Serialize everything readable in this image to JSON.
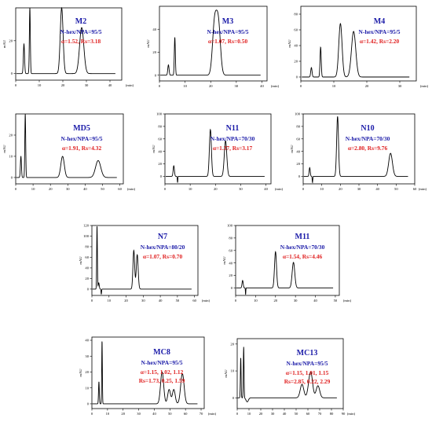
{
  "chart_data": [
    {
      "type": "line",
      "name": "M2",
      "mobile_phase": "N-hex/NPA=95/5",
      "metrics": "α=1.52, Rs=3.18",
      "ylabel": "mAU",
      "xlabel": "(min)",
      "xlim": [
        0,
        45
      ],
      "ylim": [
        -4,
        40
      ],
      "xticks": [
        0,
        10,
        20,
        30,
        40
      ],
      "yticks": [
        0,
        20
      ],
      "peaks": [
        [
          3.5,
          18,
          0.25
        ],
        [
          6.0,
          40,
          0.2
        ],
        [
          19.5,
          40,
          0.6
        ],
        [
          28.0,
          28,
          0.9
        ]
      ]
    },
    {
      "type": "line",
      "name": "M3",
      "mobile_phase": "N-hex/NPA=95/5",
      "metrics": "α=1.07, Rs=0.50",
      "ylabel": "mAU",
      "xlabel": "(min)",
      "xlim": [
        0,
        42
      ],
      "ylim": [
        -5,
        60
      ],
      "xticks": [
        0,
        10,
        20,
        30,
        40
      ],
      "yticks": [
        0,
        20,
        40
      ],
      "peaks": [
        [
          3.5,
          9,
          0.25
        ],
        [
          6.0,
          33,
          0.2
        ],
        [
          21.5,
          44,
          0.8
        ],
        [
          23.0,
          44,
          0.8
        ]
      ]
    },
    {
      "type": "line",
      "name": "M4",
      "mobile_phase": "N-hex/NPA=95/5",
      "metrics": "α=1.42, Rs=2.20",
      "ylabel": "mAU",
      "xlabel": "(min)",
      "xlim": [
        0,
        35
      ],
      "ylim": [
        -5,
        90
      ],
      "xticks": [
        0,
        10,
        20,
        30
      ],
      "yticks": [
        0,
        20,
        40,
        60,
        80
      ],
      "peaks": [
        [
          3.2,
          12,
          0.2
        ],
        [
          6.0,
          38,
          0.18
        ],
        [
          12.0,
          68,
          0.5
        ],
        [
          16.0,
          58,
          0.65
        ]
      ]
    },
    {
      "type": "line",
      "name": "MD5",
      "mobile_phase": "N-hex/NPA=95/5",
      "metrics": "α=1.91, Rs=4.32",
      "ylabel": "mAU",
      "xlabel": "(min)",
      "xlim": [
        0,
        62
      ],
      "ylim": [
        -3,
        30
      ],
      "xticks": [
        0,
        10,
        20,
        30,
        40,
        50,
        60
      ],
      "yticks": [
        0,
        10,
        20
      ],
      "peaks": [
        [
          3.0,
          10,
          0.3
        ],
        [
          5.5,
          30,
          0.25
        ],
        [
          27.0,
          10,
          1.0
        ],
        [
          47.5,
          8,
          1.5
        ]
      ]
    },
    {
      "type": "line",
      "name": "N11",
      "mobile_phase": "N-hex/NPA=70/30",
      "metrics": "α=1.37, Rs=3.17",
      "ylabel": "mAU",
      "xlabel": "(min)",
      "xlim": [
        0,
        42
      ],
      "ylim": [
        -12,
        100
      ],
      "xticks": [
        0,
        10,
        20,
        30,
        40
      ],
      "yticks": [
        0,
        20,
        40,
        60,
        80,
        100
      ],
      "peaks": [
        [
          3.5,
          17,
          0.25
        ],
        [
          18.0,
          75,
          0.4
        ],
        [
          24.0,
          57,
          0.5
        ]
      ],
      "dips": [
        [
          5.0,
          -10,
          0.1
        ]
      ]
    },
    {
      "type": "line",
      "name": "N10",
      "mobile_phase": "N-hex/NPA=70/30",
      "metrics": "α=2.80, Rs=9.76",
      "ylabel": "mAU",
      "xlabel": "(min)",
      "xlim": [
        0,
        60
      ],
      "ylim": [
        -12,
        100
      ],
      "xticks": [
        0,
        10,
        20,
        30,
        40,
        50,
        60
      ],
      "yticks": [
        0,
        20,
        40,
        60,
        80,
        100
      ],
      "peaks": [
        [
          3.5,
          14,
          0.3
        ],
        [
          18.5,
          96,
          0.5
        ],
        [
          47.0,
          37,
          1.0
        ]
      ],
      "dips": [
        [
          5.0,
          -10,
          0.15
        ]
      ]
    },
    {
      "type": "line",
      "name": "N7",
      "mobile_phase": "N-hex/NPA=80/20",
      "metrics": "α=1.07, Rs=0.70",
      "ylabel": "mAU",
      "xlabel": "(min)",
      "xlim": [
        0,
        62
      ],
      "ylim": [
        -12,
        120
      ],
      "xticks": [
        0,
        10,
        20,
        30,
        40,
        50,
        60
      ],
      "yticks": [
        0,
        20,
        40,
        60,
        80,
        100,
        120
      ],
      "peaks": [
        [
          3.0,
          120,
          0.2
        ],
        [
          4.0,
          12,
          0.3
        ],
        [
          24.5,
          73,
          0.5
        ],
        [
          26.5,
          65,
          0.55
        ]
      ],
      "dips": [
        [
          5.5,
          -10,
          0.15
        ]
      ]
    },
    {
      "type": "line",
      "name": "M11",
      "mobile_phase": "N-hex/NPA=70/30",
      "metrics": "α=1.54, Rs=4.46",
      "ylabel": "mAU",
      "xlabel": "(min)",
      "xlim": [
        0,
        52
      ],
      "ylim": [
        -12,
        100
      ],
      "xticks": [
        0,
        10,
        20,
        30,
        40,
        50
      ],
      "yticks": [
        0,
        20,
        40,
        60,
        80,
        100
      ],
      "peaks": [
        [
          3.5,
          12,
          0.3
        ],
        [
          20.0,
          58,
          0.5
        ],
        [
          29.0,
          41,
          0.65
        ]
      ],
      "dips": [
        [
          5.0,
          -11,
          0.1
        ]
      ]
    },
    {
      "type": "line",
      "name": "MC8",
      "mobile_phase": "N-hex/NPA=95/5",
      "metrics": "α=1.15, 1.02, 1.12",
      "metrics2": "Rs=1.73, 0.25, 1.59",
      "ylabel": "mAU",
      "xlabel": "(min)",
      "xlim": [
        0,
        72
      ],
      "ylim": [
        -3,
        42
      ],
      "xticks": [
        0,
        10,
        20,
        30,
        40,
        50,
        60,
        70
      ],
      "yticks": [
        0,
        10,
        20,
        30,
        40
      ],
      "peaks": [
        [
          4.5,
          14,
          0.25
        ],
        [
          6.5,
          40,
          0.2
        ],
        [
          45.0,
          20,
          1.0
        ],
        [
          49.5,
          9,
          0.9
        ],
        [
          52.5,
          9,
          0.9
        ],
        [
          58.0,
          19,
          1.1
        ]
      ]
    },
    {
      "type": "line",
      "name": "MC13",
      "mobile_phase": "N-hex/NPA=95/5",
      "metrics": "α=1.15, 1.01, 1.15",
      "metrics2": "Rs=2.85, 0.22, 2.29",
      "ylabel": "mAU",
      "xlabel": "(min)",
      "xlim": [
        0,
        90
      ],
      "ylim": [
        -4,
        22
      ],
      "xticks": [
        0,
        10,
        20,
        30,
        40,
        50,
        60,
        70,
        80,
        90
      ],
      "yticks": [
        0,
        10,
        20
      ],
      "peaks": [
        [
          3.0,
          15,
          0.3
        ],
        [
          5.5,
          19,
          0.3
        ],
        [
          55.0,
          5,
          1.5
        ],
        [
          61.5,
          5.5,
          1.5
        ],
        [
          63.0,
          5.5,
          1.4
        ],
        [
          68.5,
          4.5,
          1.5
        ]
      ],
      "dips": [
        [
          8.5,
          -1.5,
          1.0
        ]
      ]
    }
  ],
  "colors": {
    "name": "#1a1aa8",
    "mobile_phase": "#1a1aa8",
    "metrics": "#e02020",
    "trace": "#000000"
  }
}
